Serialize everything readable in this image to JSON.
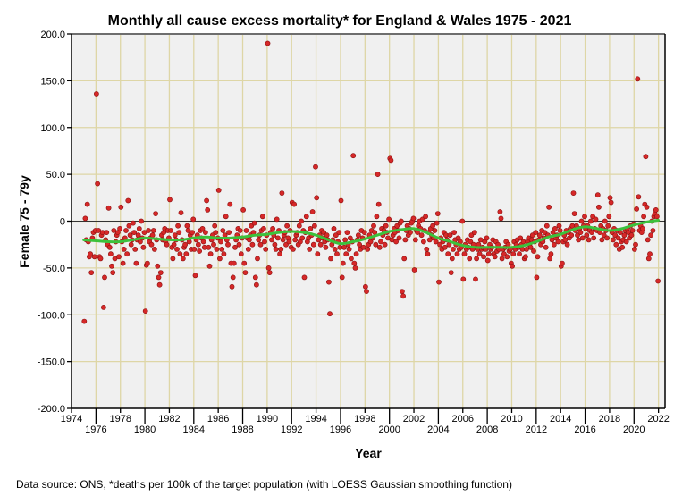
{
  "chart_data": {
    "type": "scatter",
    "title": "Monthly all cause excess mortality* for England & Wales 1975 - 2021",
    "xlabel": "Year",
    "ylabel": "Female 75 - 79y",
    "footnote": "Data source: ONS, *deaths per 100k of the target population (with LOESS Gaussian smoothing function)",
    "xlim": [
      1974,
      2022.5
    ],
    "ylim": [
      -200,
      200
    ],
    "x_ticks": [
      "1974",
      "1976",
      "1978",
      "1980",
      "1982",
      "1984",
      "1986",
      "1988",
      "1990",
      "1992",
      "1994",
      "1996",
      "1998",
      "2000",
      "2002",
      "2004",
      "2006",
      "2008",
      "2010",
      "2012",
      "2014",
      "2016",
      "2018",
      "2020",
      "2022"
    ],
    "y_ticks": [
      "200.0",
      "150.0",
      "100.0",
      "50.0",
      "0",
      "-50.0",
      "-100.0",
      "-150.0",
      "-200.0"
    ],
    "grid": true,
    "reference_line_y": 0,
    "colors": {
      "points": "#d62828",
      "point_edge": "#8a1010",
      "trend": "#3cc13c",
      "grid": "#ded6a6",
      "plot_bg": "#f0f0f0"
    },
    "monthly_series": {
      "name": "Monthly excess mortality",
      "start_year": 1975,
      "values_by_year": [
        [
          -107,
          3,
          -20,
          18,
          -22,
          -38,
          -35,
          -55,
          -18,
          -12,
          -38,
          -10
        ],
        [
          136,
          40,
          -10,
          -38,
          -40,
          -15,
          -12,
          -92,
          -60,
          -20,
          -12,
          -25
        ],
        [
          14,
          -28,
          -35,
          -48,
          -55,
          -10,
          -40,
          -22,
          -15,
          -12,
          -38,
          -8
        ],
        [
          15,
          -22,
          -45,
          -30,
          -18,
          -10,
          -35,
          22,
          -5,
          -15,
          -25,
          -20
        ],
        [
          -2,
          -12,
          -30,
          -45,
          -20,
          -15,
          -8,
          -22,
          0,
          -18,
          -28,
          -12
        ],
        [
          -96,
          -47,
          -45,
          -10,
          -22,
          -18,
          -25,
          -15,
          -10,
          -30,
          8,
          -20
        ],
        [
          -48,
          -60,
          -68,
          -55,
          -15,
          -20,
          -12,
          -8,
          -22,
          -25,
          -10,
          -18
        ],
        [
          23,
          -10,
          -28,
          -40,
          -25,
          -15,
          -20,
          -30,
          -5,
          -12,
          -35,
          9
        ],
        [
          -20,
          -40,
          -28,
          -25,
          -35,
          -5,
          -10,
          -22,
          -15,
          -30,
          -12,
          2
        ],
        [
          -30,
          -58,
          -20,
          -15,
          -25,
          -32,
          -10,
          -18,
          -8,
          -22,
          -28,
          -12
        ],
        [
          22,
          12,
          -28,
          -48,
          -35,
          -20,
          -15,
          -25,
          -5,
          -12,
          -30,
          -18
        ],
        [
          33,
          -40,
          -22,
          -30,
          -10,
          -35,
          -15,
          5,
          -20,
          -25,
          -12,
          18
        ],
        [
          -45,
          -70,
          -60,
          -45,
          -28,
          -20,
          -15,
          -8,
          -25,
          -10,
          -35,
          -18
        ],
        [
          12,
          -45,
          -55,
          -10,
          -18,
          -30,
          -20,
          -15,
          -5,
          -25,
          -12,
          -2
        ],
        [
          -60,
          -68,
          -40,
          -20,
          -15,
          -25,
          -10,
          5,
          -8,
          -22,
          -30,
          -15
        ],
        [
          190,
          -50,
          -55,
          -12,
          -20,
          -8,
          -15,
          -25,
          -30,
          2,
          -18,
          -10
        ],
        [
          -35,
          -30,
          30,
          -20,
          -15,
          -12,
          -25,
          -5,
          -18,
          -22,
          -10,
          -28
        ],
        [
          20,
          -30,
          18,
          -20,
          -15,
          -12,
          -25,
          -5,
          -22,
          0,
          -18,
          -10
        ],
        [
          -60,
          -12,
          5,
          -22,
          -18,
          -30,
          -8,
          -15,
          10,
          -25,
          -5,
          58
        ],
        [
          25,
          -35,
          -20,
          -15,
          -25,
          -10,
          -18,
          -12,
          -22,
          -28,
          -15,
          -20
        ],
        [
          -65,
          -99,
          -40,
          -25,
          -20,
          -8,
          -30,
          -15,
          -35,
          -22,
          -12,
          -28
        ],
        [
          22,
          -60,
          -45,
          -28,
          -20,
          -35,
          -12,
          -25,
          -30,
          -18,
          -40,
          -22
        ],
        [
          70,
          -45,
          -50,
          -35,
          -20,
          -15,
          -25,
          -30,
          -10,
          -18,
          -28,
          -12
        ],
        [
          -70,
          -75,
          -30,
          -25,
          -15,
          -22,
          -10,
          -18,
          -5,
          -12,
          -25,
          5
        ],
        [
          50,
          18,
          -28,
          -22,
          -8,
          -15,
          -10,
          -25,
          -5,
          -12,
          -18,
          2
        ],
        [
          67,
          65,
          -20,
          -15,
          -8,
          -12,
          -22,
          -5,
          -10,
          -18,
          -2,
          0
        ],
        [
          -75,
          -80,
          -40,
          -20,
          -10,
          -5,
          -15,
          -8,
          -12,
          -2,
          0,
          3
        ],
        [
          -52,
          -20,
          -10,
          -12,
          -5,
          0,
          -8,
          -15,
          2,
          -22,
          -10,
          5
        ],
        [
          -30,
          -35,
          -12,
          -20,
          -8,
          -15,
          -5,
          -18,
          -10,
          -22,
          -2,
          8
        ],
        [
          -65,
          -25,
          -18,
          -30,
          -22,
          -12,
          -28,
          -15,
          -20,
          -35,
          -25,
          -15
        ],
        [
          -55,
          -40,
          -30,
          -12,
          -20,
          -25,
          -35,
          -18,
          -30,
          -22,
          -28,
          0
        ],
        [
          -62,
          -35,
          -25,
          -30,
          -20,
          -28,
          -40,
          -22,
          -15,
          -30,
          -25,
          -12
        ],
        [
          -62,
          -40,
          -30,
          -25,
          -35,
          -20,
          -30,
          -28,
          -38,
          -22,
          -30,
          -18
        ],
        [
          -42,
          -35,
          -25,
          -30,
          -28,
          -20,
          -35,
          -38,
          -22,
          -32,
          -25,
          -30
        ],
        [
          10,
          3,
          -40,
          -30,
          -35,
          -28,
          -22,
          -38,
          -25,
          -32,
          -30,
          -45
        ],
        [
          -48,
          -35,
          -22,
          -30,
          -25,
          -20,
          -28,
          -35,
          -18,
          -25,
          -30,
          -22
        ],
        [
          -40,
          -38,
          -30,
          -22,
          -18,
          -25,
          -28,
          -20,
          -15,
          -32,
          -22,
          -12
        ],
        [
          -60,
          -38,
          -20,
          -15,
          -25,
          -10,
          -22,
          -18,
          -12,
          -28,
          -5,
          -15
        ],
        [
          15,
          -40,
          -35,
          -20,
          -12,
          -25,
          -8,
          -18,
          -15,
          -22,
          -5,
          -10
        ],
        [
          -48,
          -45,
          -22,
          -15,
          -20,
          -10,
          -25,
          -12,
          -18,
          -8,
          -15,
          -5
        ],
        [
          30,
          8,
          -10,
          -5,
          -15,
          -20,
          -8,
          -12,
          0,
          -18,
          -5,
          5
        ],
        [
          -8,
          -15,
          -5,
          -20,
          -10,
          0,
          -12,
          5,
          -18,
          -8,
          2,
          -10
        ],
        [
          28,
          15,
          -12,
          -5,
          -20,
          -8,
          -15,
          0,
          -10,
          -18,
          -5,
          5
        ],
        [
          25,
          20,
          -12,
          -20,
          -8,
          -15,
          -25,
          -10,
          -18,
          -30,
          -12,
          -22
        ],
        [
          -28,
          -20,
          -15,
          -10,
          -22,
          -8,
          -12,
          -18,
          -5,
          -15,
          -10,
          -3
        ],
        [
          -30,
          -25,
          13,
          152,
          26,
          -10,
          -5,
          -12,
          -8,
          5,
          18,
          69
        ],
        [
          15,
          -20,
          -40,
          -35,
          -15,
          0,
          -10,
          5,
          8,
          12,
          5,
          -64
        ]
      ]
    },
    "trend_series": {
      "name": "LOESS Gaussian smoothing",
      "years": [
        1975,
        1976,
        1977,
        1978,
        1979,
        1980,
        1981,
        1982,
        1983,
        1984,
        1985,
        1986,
        1987,
        1988,
        1989,
        1990,
        1991,
        1992,
        1993,
        1994,
        1995,
        1996,
        1997,
        1998,
        1999,
        2000,
        2001,
        2002,
        2003,
        2004,
        2005,
        2006,
        2007,
        2008,
        2009,
        2010,
        2011,
        2012,
        2013,
        2014,
        2015,
        2016,
        2017,
        2018,
        2019,
        2020,
        2021,
        2022
      ],
      "values": [
        -20,
        -21,
        -22,
        -22,
        -20,
        -18,
        -19,
        -20,
        -20,
        -18,
        -17,
        -18,
        -18,
        -17,
        -15,
        -14,
        -12,
        -11,
        -12,
        -15,
        -20,
        -24,
        -22,
        -19,
        -15,
        -11,
        -9,
        -8,
        -12,
        -18,
        -22,
        -26,
        -28,
        -28,
        -28,
        -28,
        -26,
        -22,
        -17,
        -14,
        -9,
        -6,
        -8,
        -10,
        -8,
        -4,
        -1,
        1
      ]
    }
  }
}
